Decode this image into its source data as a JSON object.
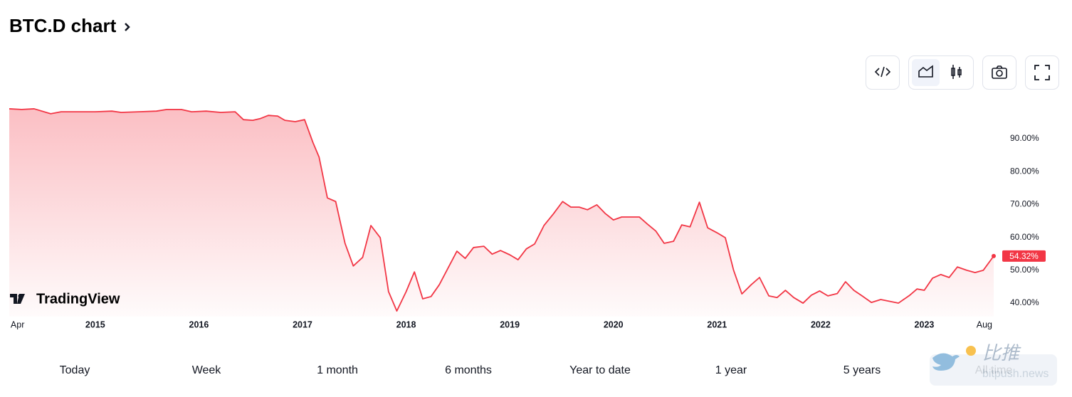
{
  "header": {
    "title": "BTC.D chart"
  },
  "chart_data": {
    "type": "area",
    "logo": "TradingView",
    "x": [
      2014.17,
      2014.29,
      2014.41,
      2014.57,
      2014.67,
      2014.84,
      2015.0,
      2015.16,
      2015.25,
      2015.42,
      2015.59,
      2015.69,
      2015.83,
      2015.93,
      2016.07,
      2016.21,
      2016.35,
      2016.43,
      2016.52,
      2016.59,
      2016.67,
      2016.76,
      2016.83,
      2016.93,
      2017.02,
      2017.1,
      2017.16,
      2017.24,
      2017.32,
      2017.41,
      2017.49,
      2017.58,
      2017.66,
      2017.75,
      2017.83,
      2017.91,
      2018.0,
      2018.08,
      2018.16,
      2018.24,
      2018.32,
      2018.41,
      2018.49,
      2018.57,
      2018.65,
      2018.75,
      2018.83,
      2018.91,
      2019.0,
      2019.08,
      2019.16,
      2019.24,
      2019.33,
      2019.42,
      2019.51,
      2019.59,
      2019.67,
      2019.75,
      2019.84,
      2019.92,
      2020.0,
      2020.08,
      2020.16,
      2020.25,
      2020.33,
      2020.41,
      2020.49,
      2020.58,
      2020.66,
      2020.74,
      2020.83,
      2020.91,
      2021.0,
      2021.08,
      2021.16,
      2021.24,
      2021.33,
      2021.41,
      2021.5,
      2021.58,
      2021.66,
      2021.74,
      2021.83,
      2021.91,
      2021.99,
      2022.07,
      2022.16,
      2022.24,
      2022.32,
      2022.4,
      2022.49,
      2022.58,
      2022.75,
      2022.86,
      2022.93,
      2023.0,
      2023.08,
      2023.16,
      2023.24,
      2023.32,
      2023.41,
      2023.49,
      2023.57,
      2023.67
    ],
    "values": [
      99.1,
      98.9,
      99.1,
      97.6,
      98.2,
      98.2,
      98.2,
      98.4,
      98.0,
      98.2,
      98.4,
      98.9,
      98.9,
      98.2,
      98.4,
      98.0,
      98.2,
      95.8,
      95.6,
      96.1,
      97.1,
      96.9,
      95.6,
      95.2,
      95.8,
      88.9,
      84.4,
      72.0,
      70.9,
      58.2,
      51.3,
      53.9,
      63.6,
      59.9,
      43.5,
      37.6,
      43.5,
      49.5,
      41.3,
      42.0,
      45.6,
      51.0,
      55.8,
      53.6,
      56.9,
      57.3,
      54.9,
      56.0,
      54.7,
      53.2,
      56.5,
      58.0,
      63.6,
      67.1,
      70.9,
      69.2,
      69.2,
      68.4,
      69.9,
      67.3,
      65.3,
      66.2,
      66.2,
      66.2,
      64.0,
      61.9,
      58.2,
      58.8,
      63.8,
      63.2,
      70.7,
      62.9,
      61.4,
      59.9,
      50.0,
      42.8,
      45.6,
      47.8,
      42.2,
      41.7,
      43.9,
      41.7,
      40.0,
      42.4,
      43.7,
      42.2,
      42.9,
      46.5,
      43.9,
      42.2,
      40.2,
      41.1,
      40.0,
      42.4,
      44.3,
      43.9,
      47.6,
      48.7,
      47.8,
      51.0,
      50.0,
      49.3,
      50.0,
      54.32
    ],
    "value_labels": [
      null,
      null,
      null,
      null,
      null,
      null,
      null,
      null,
      null,
      null,
      null,
      null,
      null,
      null,
      null,
      null,
      null,
      null,
      null,
      null,
      null,
      null,
      null,
      null,
      null,
      null,
      null,
      null,
      null,
      null,
      null,
      null,
      null,
      null,
      null,
      null,
      null,
      null,
      null,
      null,
      null,
      null,
      null,
      null,
      null,
      null,
      null,
      null,
      null,
      null,
      null,
      null,
      null,
      null,
      null,
      null,
      null,
      null,
      null,
      null,
      null,
      null,
      null,
      null,
      null,
      null,
      null,
      null,
      null,
      null,
      null,
      null,
      null,
      null,
      null,
      null,
      null,
      null,
      null,
      null,
      null,
      null,
      null,
      null,
      null,
      null,
      null,
      null,
      null,
      null,
      null,
      null,
      null,
      null,
      null,
      null,
      null,
      null,
      null,
      null,
      null,
      null,
      null,
      "54.32%"
    ],
    "color": "#f23645",
    "xlim": [
      2014.17,
      2023.67
    ],
    "xticks": [
      {
        "value": 2014.25,
        "label": "Apr"
      },
      2015,
      2016,
      2017,
      2018,
      2019,
      2020,
      2021,
      2022,
      2023,
      {
        "value": 2023.58,
        "label": "Aug"
      }
    ],
    "ylim": [
      35.9,
      101.9
    ],
    "yticks": [
      {
        "value": 40,
        "label": "40.00%"
      },
      {
        "value": 50,
        "label": "50.00%"
      },
      {
        "value": 60,
        "label": "60.00%"
      },
      {
        "value": 70,
        "label": "70.00%"
      },
      {
        "value": 80,
        "label": "80.00%"
      },
      {
        "value": 90,
        "label": "90.00%"
      }
    ]
  },
  "ranges": [
    "Today",
    "Week",
    "1 month",
    "6 months",
    "Year to date",
    "1 year",
    "5 years",
    "All time"
  ],
  "watermark": {
    "name": "比推",
    "site": "bitpush.news"
  }
}
